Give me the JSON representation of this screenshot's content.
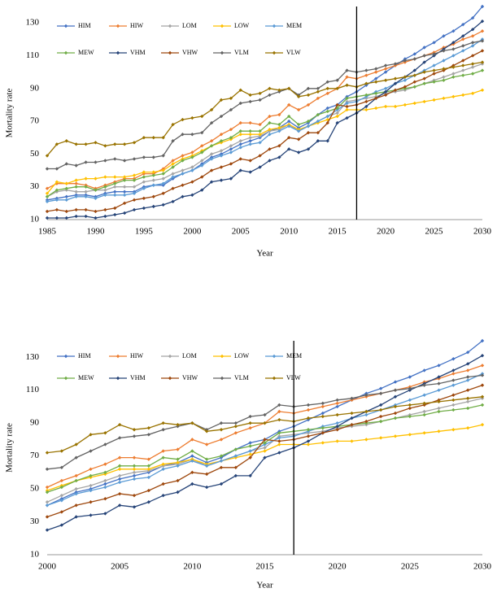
{
  "chart_data": [
    {
      "type": "line",
      "x_label": "Year",
      "y_label": "Mortality rate",
      "x": [
        1985,
        1986,
        1987,
        1988,
        1989,
        1990,
        1991,
        1992,
        1993,
        1994,
        1995,
        1996,
        1997,
        1998,
        1999,
        2000,
        2001,
        2002,
        2003,
        2004,
        2005,
        2006,
        2007,
        2008,
        2009,
        2010,
        2011,
        2012,
        2013,
        2014,
        2015,
        2016,
        2017,
        2018,
        2019,
        2020,
        2021,
        2022,
        2023,
        2024,
        2025,
        2026,
        2027,
        2028,
        2029,
        2030
      ],
      "xlim": [
        1985,
        2030
      ],
      "xticks": [
        1985,
        1990,
        1995,
        2000,
        2005,
        2010,
        2015,
        2020,
        2025,
        2030
      ],
      "ylim": [
        10,
        140
      ],
      "yticks": [
        10,
        30,
        50,
        70,
        90,
        110,
        130
      ],
      "vline": 2017,
      "legend": "top-left",
      "series": [
        {
          "name": "HIM",
          "color": "#4472c4",
          "values": [
            22,
            23,
            24,
            25,
            25,
            24,
            26,
            27,
            27,
            27,
            30,
            31,
            31,
            35,
            38,
            40,
            44,
            48,
            50,
            53,
            56,
            58,
            60,
            64,
            66,
            70,
            66,
            69,
            74,
            78,
            80,
            85,
            88,
            92,
            96,
            100,
            104,
            108,
            111,
            115,
            118,
            122,
            125,
            129,
            133,
            140
          ]
        },
        {
          "name": "HIW",
          "color": "#ed7d31",
          "values": [
            29,
            32,
            32,
            32,
            31,
            29,
            31,
            33,
            35,
            35,
            38,
            38,
            41,
            46,
            49,
            51,
            55,
            58,
            62,
            65,
            69,
            69,
            68,
            73,
            74,
            80,
            77,
            80,
            84,
            87,
            90,
            97,
            96,
            98,
            100,
            102,
            104,
            106,
            108,
            110,
            112,
            115,
            117,
            120,
            122,
            125
          ]
        },
        {
          "name": "LOM",
          "color": "#a5a5a5",
          "values": [
            24,
            27,
            28,
            27,
            27,
            28,
            28,
            30,
            30,
            30,
            33,
            34,
            35,
            38,
            40,
            42,
            46,
            50,
            52,
            55,
            58,
            60,
            61,
            64,
            65,
            68,
            64,
            67,
            70,
            73,
            75,
            82,
            83,
            84,
            85,
            87,
            88,
            89,
            91,
            93,
            95,
            97,
            99,
            101,
            103,
            105
          ]
        },
        {
          "name": "LOW",
          "color": "#ffc000",
          "values": [
            26,
            33,
            32,
            34,
            35,
            35,
            36,
            36,
            36,
            37,
            39,
            39,
            40,
            44,
            47,
            49,
            52,
            55,
            57,
            59,
            62,
            62,
            62,
            65,
            66,
            68,
            65,
            67,
            69,
            71,
            73,
            77,
            77,
            77,
            78,
            79,
            79,
            80,
            81,
            82,
            83,
            84,
            85,
            86,
            87,
            89
          ]
        },
        {
          "name": "MEM",
          "color": "#5b9bd5",
          "values": [
            21,
            22,
            22,
            24,
            24,
            23,
            25,
            25,
            25,
            26,
            29,
            31,
            32,
            36,
            38,
            40,
            43,
            47,
            49,
            51,
            54,
            56,
            57,
            62,
            64,
            67,
            64,
            67,
            70,
            73,
            77,
            81,
            82,
            85,
            88,
            90,
            93,
            95,
            98,
            101,
            104,
            107,
            110,
            113,
            116,
            120
          ]
        },
        {
          "name": "MEW",
          "color": "#70ad47",
          "values": [
            24,
            28,
            29,
            30,
            30,
            28,
            30,
            32,
            34,
            34,
            36,
            37,
            38,
            42,
            46,
            48,
            51,
            55,
            58,
            60,
            64,
            64,
            64,
            69,
            68,
            73,
            68,
            70,
            74,
            76,
            78,
            84,
            85,
            86,
            87,
            88,
            89,
            90,
            91,
            93,
            94,
            95,
            97,
            98,
            99,
            101
          ]
        },
        {
          "name": "VHM",
          "color": "#264478",
          "values": [
            11,
            11,
            11,
            12,
            12,
            11,
            12,
            13,
            14,
            16,
            17,
            18,
            19,
            21,
            24,
            25,
            28,
            33,
            34,
            35,
            40,
            39,
            42,
            46,
            48,
            53,
            51,
            53,
            58,
            58,
            69,
            72,
            75,
            79,
            84,
            88,
            93,
            97,
            101,
            106,
            110,
            114,
            118,
            122,
            126,
            131
          ]
        },
        {
          "name": "VHW",
          "color": "#9e480e",
          "values": [
            15,
            16,
            15,
            16,
            16,
            15,
            16,
            17,
            20,
            22,
            23,
            24,
            26,
            29,
            31,
            33,
            36,
            40,
            42,
            44,
            47,
            46,
            49,
            53,
            55,
            60,
            59,
            63,
            63,
            69,
            80,
            79,
            80,
            82,
            84,
            86,
            89,
            91,
            94,
            96,
            99,
            101,
            104,
            107,
            110,
            113
          ]
        },
        {
          "name": "VLM",
          "color": "#636363",
          "values": [
            41,
            41,
            44,
            43,
            45,
            45,
            46,
            47,
            46,
            47,
            48,
            48,
            49,
            58,
            62,
            62,
            63,
            69,
            73,
            77,
            81,
            82,
            83,
            86,
            88,
            90,
            86,
            90,
            90,
            94,
            95,
            101,
            100,
            101,
            102,
            104,
            105,
            107,
            108,
            110,
            111,
            113,
            114,
            116,
            118,
            119
          ]
        },
        {
          "name": "VLW",
          "color": "#997300",
          "values": [
            49,
            56,
            58,
            56,
            56,
            57,
            55,
            56,
            56,
            57,
            60,
            60,
            60,
            68,
            71,
            72,
            73,
            77,
            83,
            84,
            89,
            86,
            87,
            90,
            89,
            90,
            85,
            86,
            88,
            90,
            90,
            92,
            91,
            93,
            94,
            95,
            96,
            97,
            98,
            100,
            101,
            102,
            103,
            104,
            105,
            106
          ]
        }
      ]
    },
    {
      "type": "line",
      "x_label": "Year",
      "y_label": "Mortality rate",
      "x": [
        2000,
        2001,
        2002,
        2003,
        2004,
        2005,
        2006,
        2007,
        2008,
        2009,
        2010,
        2011,
        2012,
        2013,
        2014,
        2015,
        2016,
        2017,
        2018,
        2019,
        2020,
        2021,
        2022,
        2023,
        2024,
        2025,
        2026,
        2027,
        2028,
        2029,
        2030
      ],
      "xlim": [
        2000,
        2030
      ],
      "xticks": [
        2000,
        2005,
        2010,
        2015,
        2020,
        2025,
        2030
      ],
      "ylim": [
        10,
        140
      ],
      "yticks": [
        10,
        30,
        50,
        70,
        90,
        110,
        130
      ],
      "vline": 2017,
      "legend": "top-left",
      "series": [
        {
          "name": "HIM",
          "color": "#4472c4",
          "values": [
            40,
            44,
            48,
            50,
            53,
            56,
            58,
            60,
            64,
            66,
            70,
            66,
            69,
            74,
            78,
            80,
            85,
            88,
            92,
            96,
            100,
            104,
            108,
            111,
            115,
            118,
            122,
            125,
            129,
            133,
            140
          ]
        },
        {
          "name": "HIW",
          "color": "#ed7d31",
          "values": [
            51,
            55,
            58,
            62,
            65,
            69,
            69,
            68,
            73,
            74,
            80,
            77,
            80,
            84,
            87,
            90,
            97,
            96,
            98,
            100,
            102,
            104,
            106,
            108,
            110,
            112,
            115,
            117,
            120,
            122,
            125
          ]
        },
        {
          "name": "LOM",
          "color": "#a5a5a5",
          "values": [
            42,
            46,
            50,
            52,
            55,
            58,
            60,
            61,
            64,
            65,
            68,
            64,
            67,
            70,
            73,
            75,
            82,
            83,
            84,
            85,
            87,
            88,
            89,
            91,
            93,
            95,
            97,
            99,
            101,
            103,
            105
          ]
        },
        {
          "name": "LOW",
          "color": "#ffc000",
          "values": [
            49,
            52,
            55,
            57,
            59,
            62,
            62,
            62,
            65,
            66,
            68,
            65,
            67,
            69,
            71,
            73,
            77,
            77,
            77,
            78,
            79,
            79,
            80,
            81,
            82,
            83,
            84,
            85,
            86,
            87,
            89
          ]
        },
        {
          "name": "MEM",
          "color": "#5b9bd5",
          "values": [
            40,
            43,
            47,
            49,
            51,
            54,
            56,
            57,
            62,
            64,
            67,
            64,
            67,
            70,
            73,
            77,
            81,
            82,
            85,
            88,
            90,
            93,
            95,
            98,
            101,
            104,
            107,
            110,
            113,
            116,
            120
          ]
        },
        {
          "name": "MEW",
          "color": "#70ad47",
          "values": [
            48,
            51,
            55,
            58,
            60,
            64,
            64,
            64,
            69,
            68,
            73,
            68,
            70,
            74,
            76,
            78,
            84,
            85,
            86,
            87,
            88,
            89,
            90,
            91,
            93,
            94,
            95,
            97,
            98,
            99,
            101
          ]
        },
        {
          "name": "VHM",
          "color": "#264478",
          "values": [
            25,
            28,
            33,
            34,
            35,
            40,
            39,
            42,
            46,
            48,
            53,
            51,
            53,
            58,
            58,
            69,
            72,
            75,
            79,
            84,
            88,
            93,
            97,
            101,
            106,
            110,
            114,
            118,
            122,
            126,
            131
          ]
        },
        {
          "name": "VHW",
          "color": "#9e480e",
          "values": [
            33,
            36,
            40,
            42,
            44,
            47,
            46,
            49,
            53,
            55,
            60,
            59,
            63,
            63,
            69,
            80,
            79,
            80,
            82,
            84,
            86,
            89,
            91,
            94,
            96,
            99,
            101,
            104,
            107,
            110,
            113
          ]
        },
        {
          "name": "VLM",
          "color": "#636363",
          "values": [
            62,
            63,
            69,
            73,
            77,
            81,
            82,
            83,
            86,
            88,
            90,
            86,
            90,
            90,
            94,
            95,
            101,
            100,
            101,
            102,
            104,
            105,
            107,
            108,
            110,
            111,
            113,
            114,
            116,
            118,
            119
          ]
        },
        {
          "name": "VLW",
          "color": "#997300",
          "values": [
            72,
            73,
            77,
            83,
            84,
            89,
            86,
            87,
            90,
            89,
            90,
            85,
            86,
            88,
            90,
            90,
            92,
            91,
            93,
            94,
            95,
            96,
            97,
            98,
            100,
            101,
            102,
            103,
            104,
            105,
            106
          ]
        }
      ]
    }
  ]
}
